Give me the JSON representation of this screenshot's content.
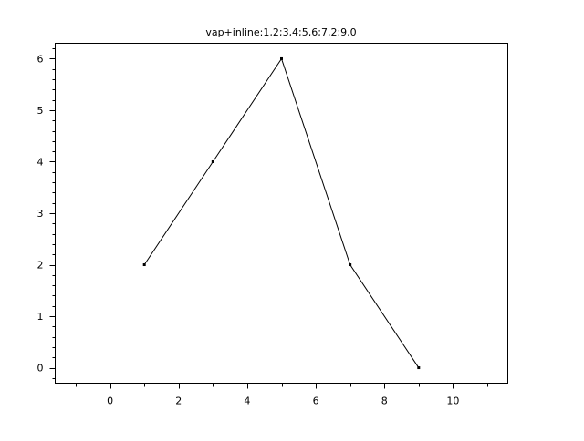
{
  "chart_data": {
    "type": "line",
    "title": "vap+inline:1,2;3,4;5,6;7,2;9,0",
    "xlabel": "",
    "ylabel": "",
    "x": [
      1,
      3,
      5,
      7,
      9
    ],
    "series": [
      {
        "values": [
          2,
          4,
          6,
          2,
          0
        ],
        "color": "#000000",
        "marker": "dot"
      }
    ],
    "xlim": [
      -1.6,
      11.6
    ],
    "ylim": [
      -0.3,
      6.3
    ],
    "xticks": [
      0,
      2,
      4,
      6,
      8,
      10
    ],
    "xtick_labels": [
      "0",
      "2",
      "4",
      "6",
      "8",
      "10"
    ],
    "yticks": [
      0,
      1,
      2,
      3,
      4,
      5,
      6
    ],
    "ytick_labels": [
      "0",
      "1",
      "2",
      "3",
      "4",
      "5",
      "6"
    ],
    "grid": false,
    "legend": "none"
  }
}
